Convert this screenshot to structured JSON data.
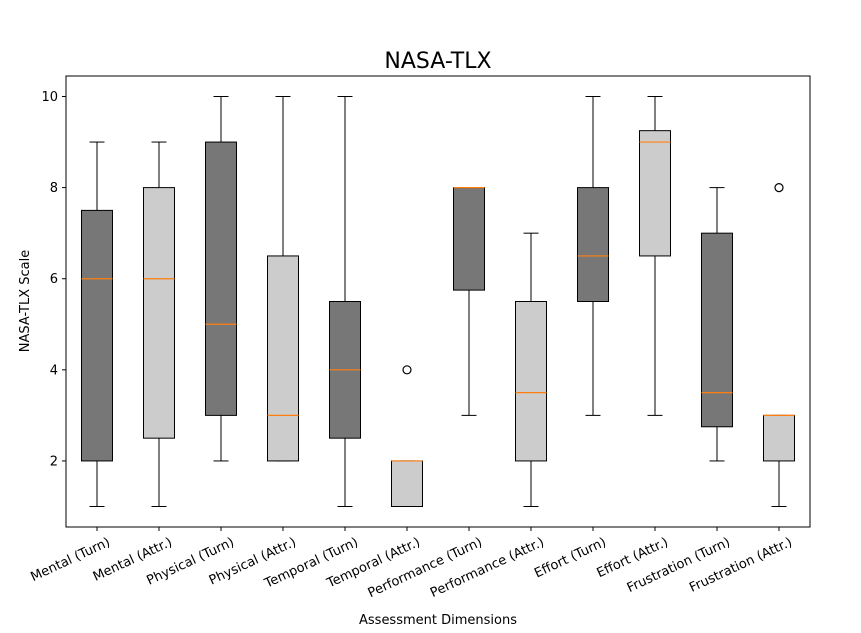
{
  "chart_data": {
    "type": "box",
    "title": "NASA-TLX",
    "xlabel": "Assessment Dimensions",
    "ylabel": "NASA-TLX Scale",
    "ylim": [
      0.55,
      10.45
    ],
    "yticks": [
      2,
      4,
      6,
      8,
      10
    ],
    "grid": false,
    "colors": {
      "turn_fill": "#777777",
      "attr_fill": "#cccccc",
      "median": "#ff7f0e",
      "stroke": "#000000"
    },
    "boxes": [
      {
        "label": "Mental (Turn)",
        "whislo": 1,
        "q1": 2,
        "med": 6,
        "q3": 7.5,
        "whishi": 9,
        "fliers": [],
        "fill": "dark"
      },
      {
        "label": "Mental (Attr.)",
        "whislo": 1,
        "q1": 2.5,
        "med": 6,
        "q3": 8,
        "whishi": 9,
        "fliers": [],
        "fill": "light"
      },
      {
        "label": "Physical (Turn)",
        "whislo": 2,
        "q1": 3,
        "med": 5,
        "q3": 9,
        "whishi": 10,
        "fliers": [],
        "fill": "dark"
      },
      {
        "label": "Physical (Attr.)",
        "whislo": 2,
        "q1": 2,
        "med": 3,
        "q3": 6.5,
        "whishi": 10,
        "fliers": [],
        "fill": "light"
      },
      {
        "label": "Temporal (Turn)",
        "whislo": 1,
        "q1": 2.5,
        "med": 4,
        "q3": 5.5,
        "whishi": 10,
        "fliers": [],
        "fill": "dark"
      },
      {
        "label": "Temporal (Attr.)",
        "whislo": 1,
        "q1": 1,
        "med": 2,
        "q3": 2,
        "whishi": 2,
        "fliers": [
          4
        ],
        "fill": "light"
      },
      {
        "label": "Performance (Turn)",
        "whislo": 3,
        "q1": 5.75,
        "med": 8,
        "q3": 8,
        "whishi": 8,
        "fliers": [],
        "fill": "dark"
      },
      {
        "label": "Performance (Attr.)",
        "whislo": 1,
        "q1": 2,
        "med": 3.5,
        "q3": 5.5,
        "whishi": 7,
        "fliers": [],
        "fill": "light"
      },
      {
        "label": "Effort (Turn)",
        "whislo": 3,
        "q1": 5.5,
        "med": 6.5,
        "q3": 8,
        "whishi": 10,
        "fliers": [],
        "fill": "dark"
      },
      {
        "label": "Effort (Attr.)",
        "whislo": 3,
        "q1": 6.5,
        "med": 9,
        "q3": 9.25,
        "whishi": 10,
        "fliers": [],
        "fill": "light"
      },
      {
        "label": "Frustration (Turn)",
        "whislo": 2,
        "q1": 2.75,
        "med": 3.5,
        "q3": 7,
        "whishi": 8,
        "fliers": [],
        "fill": "dark"
      },
      {
        "label": "Frustration (Attr.)",
        "whislo": 1,
        "q1": 2,
        "med": 3,
        "q3": 3,
        "whishi": 3,
        "fliers": [
          8
        ],
        "fill": "light"
      }
    ]
  }
}
